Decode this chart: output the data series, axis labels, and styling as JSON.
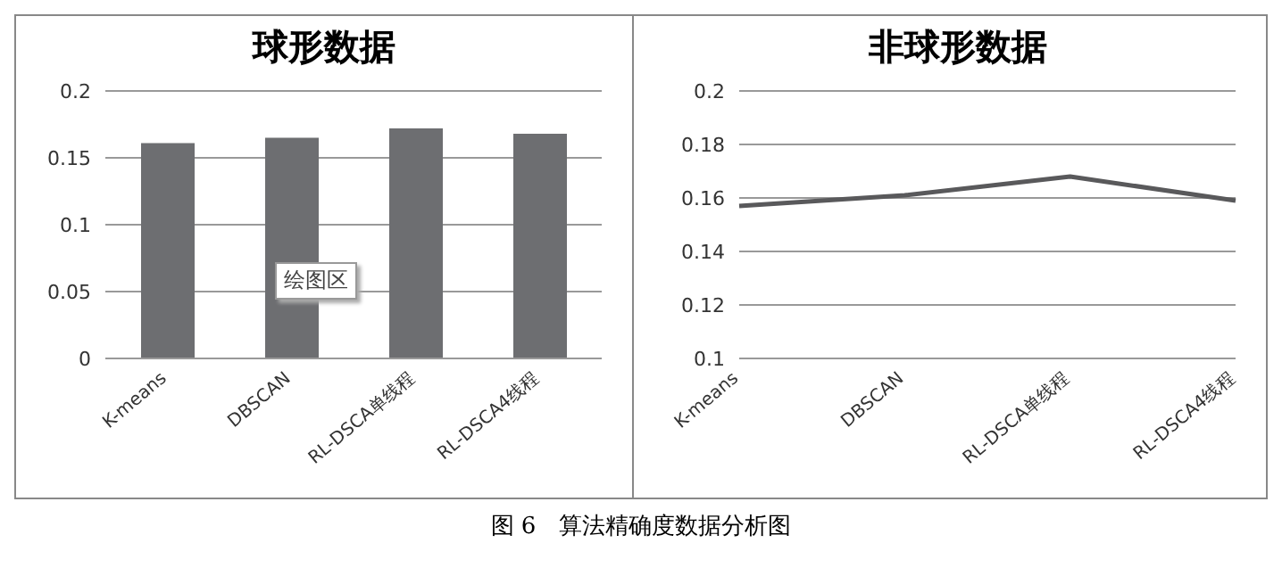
{
  "chart_data": [
    {
      "type": "bar",
      "title": "球形数据",
      "categories": [
        "K-means",
        "DBSCAN",
        "RL-DSCA单线程",
        "RL-DSCA4线程"
      ],
      "values": [
        0.161,
        0.165,
        0.172,
        0.168
      ],
      "color": "#6d6e71",
      "ylim": [
        0,
        0.2
      ],
      "yticks": [
        0,
        0.05,
        0.1,
        0.15,
        0.2
      ],
      "grid": "y",
      "annotations": [
        "绘图区"
      ]
    },
    {
      "type": "line",
      "title": "非球形数据",
      "categories": [
        "K-means",
        "DBSCAN",
        "RL-DSCA单线程",
        "RL-DSCA4线程"
      ],
      "values": [
        0.157,
        0.161,
        0.168,
        0.159
      ],
      "color": "#59595b",
      "ylim": [
        0.1,
        0.2
      ],
      "yticks": [
        0.1,
        0.12,
        0.14,
        0.16,
        0.18,
        0.2
      ],
      "grid": "y",
      "marker": "none",
      "annotations": [
        "图 6　算法精确度数据分析图"
      ]
    }
  ]
}
